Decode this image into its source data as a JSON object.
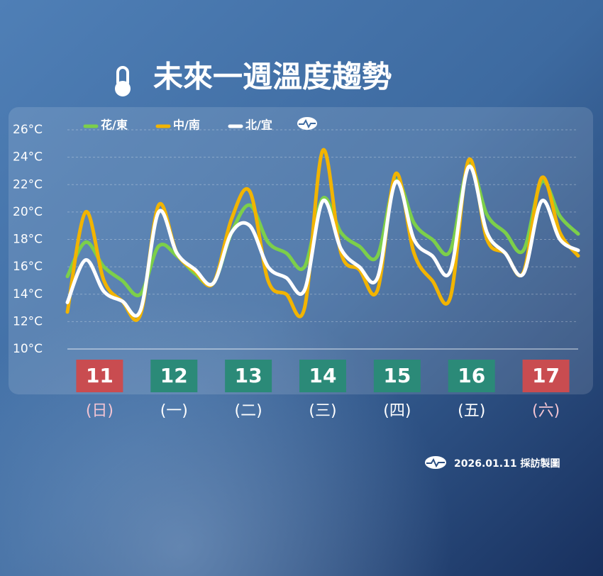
{
  "chart_data": {
    "type": "line",
    "title": "未來一週溫度趨勢",
    "categories": [
      null,
      null,
      null,
      null,
      null,
      null,
      null,
      null,
      null,
      null,
      null,
      null,
      null,
      null,
      null,
      null,
      null,
      null,
      null,
      null,
      null,
      null,
      null,
      null,
      null,
      null,
      null,
      null,
      null
    ],
    "series": [
      {
        "name": "花/東",
        "color": "#7ccf4a",
        "values": [
          15.3,
          17.8,
          16.0,
          15.0,
          14.0,
          17.5,
          16.8,
          15.5,
          14.8,
          18.5,
          20.5,
          17.8,
          17.0,
          16.0,
          21.0,
          18.5,
          17.5,
          16.8,
          22.3,
          19.2,
          18.0,
          17.2,
          23.4,
          19.8,
          18.5,
          17.2,
          22.2,
          19.7,
          18.4
        ]
      },
      {
        "name": "中/南",
        "color": "#f2b400",
        "values": [
          12.7,
          20.0,
          15.0,
          13.5,
          12.5,
          20.5,
          17.0,
          15.7,
          14.8,
          19.5,
          21.5,
          15.0,
          14.0,
          13.0,
          24.5,
          17.0,
          15.8,
          14.3,
          22.8,
          17.0,
          15.0,
          13.8,
          23.8,
          18.0,
          17.0,
          15.6,
          22.5,
          18.5,
          16.8
        ]
      },
      {
        "name": "北/宜",
        "color": "#ffffff",
        "values": [
          13.4,
          16.5,
          14.2,
          13.5,
          12.8,
          20.0,
          17.0,
          15.8,
          14.8,
          18.5,
          19.0,
          16.0,
          15.2,
          14.3,
          20.8,
          17.3,
          16.0,
          15.2,
          22.2,
          18.0,
          16.8,
          15.7,
          23.3,
          18.5,
          17.0,
          15.5,
          20.8,
          18.0,
          17.2
        ]
      }
    ],
    "ylim": [
      10,
      26
    ],
    "yticks": [
      {
        "value": 10,
        "label": "10°C"
      },
      {
        "value": 12,
        "label": "12°C"
      },
      {
        "value": 14,
        "label": "14°C"
      },
      {
        "value": 16,
        "label": "16°C"
      },
      {
        "value": 18,
        "label": "18°C"
      },
      {
        "value": 20,
        "label": "20°C"
      },
      {
        "value": 22,
        "label": "22°C"
      },
      {
        "value": 24,
        "label": "24°C"
      },
      {
        "value": 26,
        "label": "26°C"
      }
    ],
    "grid": true,
    "days": [
      {
        "date": "11",
        "weekday": "(日)",
        "color": "#c94c50"
      },
      {
        "date": "12",
        "weekday": "(一)",
        "color": "#2b8a78"
      },
      {
        "date": "13",
        "weekday": "(二)",
        "color": "#2b8a78"
      },
      {
        "date": "14",
        "weekday": "(三)",
        "color": "#2b8a78"
      },
      {
        "date": "15",
        "weekday": "(四)",
        "color": "#2b8a78"
      },
      {
        "date": "16",
        "weekday": "(五)",
        "color": "#2b8a78"
      },
      {
        "date": "17",
        "weekday": "(六)",
        "color": "#c94c50"
      }
    ],
    "credit": "2026.01.11 採訪製圖"
  }
}
